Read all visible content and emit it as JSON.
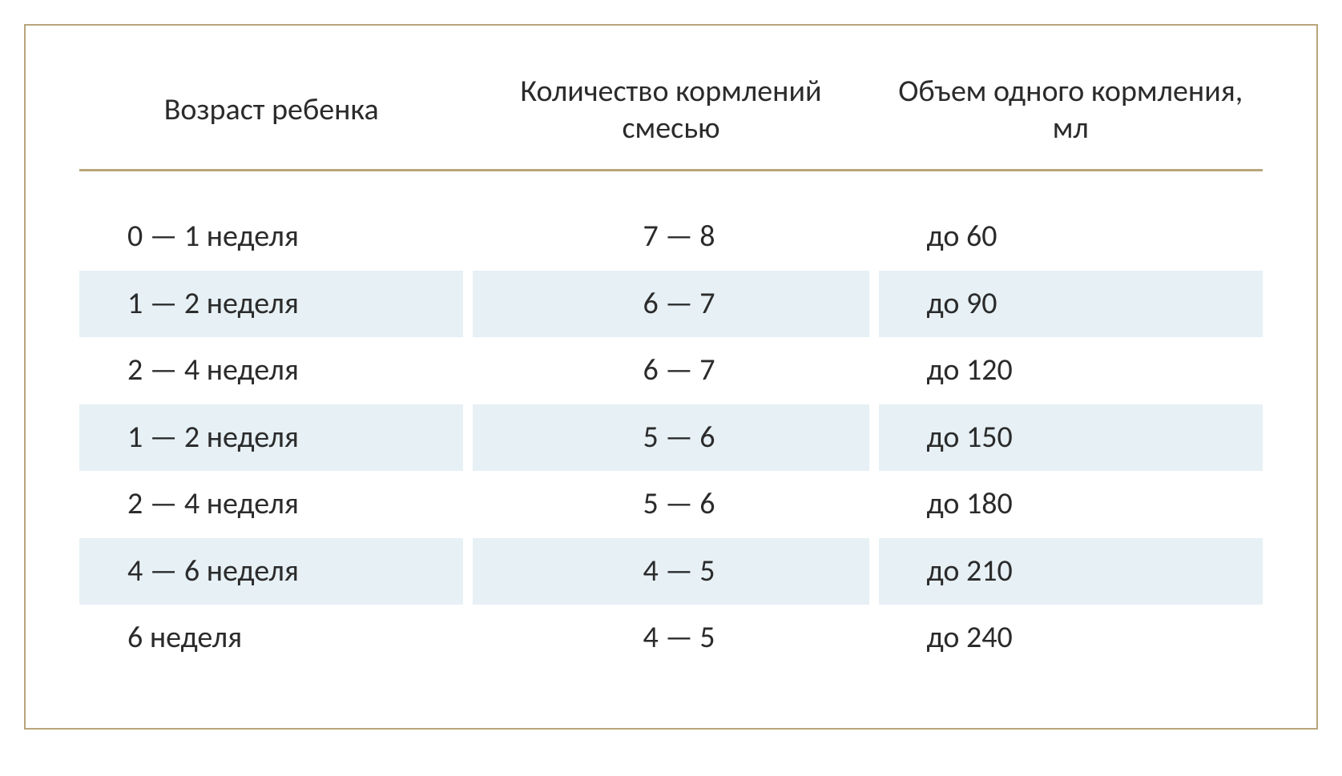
{
  "table": {
    "type": "table",
    "background_color": "#ffffff",
    "border_color": "#b8a57b",
    "row_alt_color": "#e6f0f5",
    "text_color": "#2b2b2b",
    "header_fontsize": 38,
    "body_fontsize": 38,
    "columns": [
      {
        "label": "Возраст ребенка",
        "align": "left",
        "width": "33%"
      },
      {
        "label": "Количество кормлений смесью",
        "align": "center",
        "width": "34%"
      },
      {
        "label": "Объем одного кормления, мл",
        "align": "left",
        "width": "33%"
      }
    ],
    "rows": [
      {
        "age": "0 — 1 неделя",
        "feedings": "7 — 8",
        "volume": "до 60",
        "alt": false
      },
      {
        "age": "1 — 2 неделя",
        "feedings": "6 — 7",
        "volume": "до 90",
        "alt": true
      },
      {
        "age": "2 — 4 неделя",
        "feedings": "6 — 7",
        "volume": "до 120",
        "alt": false
      },
      {
        "age": "1 — 2 неделя",
        "feedings": "5 — 6",
        "volume": "до 150",
        "alt": true
      },
      {
        "age": "2 — 4 неделя",
        "feedings": "5 — 6",
        "volume": "до 180",
        "alt": false
      },
      {
        "age": "4 — 6 неделя",
        "feedings": "4 — 5",
        "volume": "до 210",
        "alt": true
      },
      {
        "age": "6 неделя",
        "feedings": "4 — 5",
        "volume": "до 240",
        "alt": false
      }
    ]
  }
}
